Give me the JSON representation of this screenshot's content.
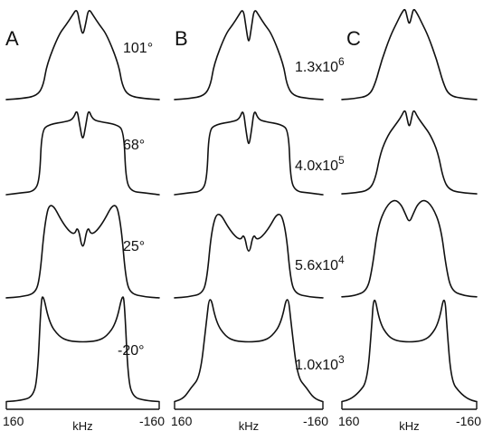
{
  "chart_data": {
    "type": "line",
    "x_unit": "kHz",
    "xlim": [
      160,
      -160
    ],
    "x_ticks": [
      "160",
      "-160"
    ],
    "panels": [
      {
        "label": "A",
        "row_labels": [
          "101°",
          "68°",
          "25°",
          "-20°"
        ],
        "tick_labels": [
          "160",
          "-160"
        ],
        "unit_label": "kHz",
        "spectra": [
          {
            "x": [
              160,
              130,
              95,
              82,
              75,
              50,
              35,
              22,
              12,
              6,
              0,
              -6,
              -12,
              -22,
              -35,
              -50,
              -75,
              -82,
              -95,
              -130,
              -160
            ],
            "y": [
              0.02,
              0.03,
              0.06,
              0.18,
              0.4,
              0.72,
              0.82,
              0.92,
              1.0,
              0.83,
              0.7,
              0.83,
              1.0,
              0.92,
              0.82,
              0.72,
              0.4,
              0.18,
              0.06,
              0.03,
              0.02
            ]
          },
          {
            "x": [
              160,
              130,
              100,
              90,
              86,
              70,
              35,
              20,
              12,
              6,
              0,
              -6,
              -12,
              -20,
              -35,
              -70,
              -86,
              -90,
              -100,
              -130,
              -160
            ],
            "y": [
              0.01,
              0.03,
              0.05,
              0.2,
              0.75,
              0.82,
              0.85,
              0.88,
              1.0,
              0.8,
              0.62,
              0.8,
              1.0,
              0.88,
              0.85,
              0.82,
              0.75,
              0.2,
              0.05,
              0.03,
              0.01
            ]
          },
          {
            "x": [
              160,
              130,
              100,
              90,
              80,
              68,
              40,
              18,
              10,
              0,
              -10,
              -18,
              -40,
              -68,
              -80,
              -90,
              -100,
              -130,
              -160
            ],
            "y": [
              0.01,
              0.02,
              0.05,
              0.2,
              0.75,
              1.0,
              0.74,
              0.63,
              0.74,
              0.46,
              0.74,
              0.63,
              0.74,
              1.0,
              0.75,
              0.2,
              0.05,
              0.02,
              0.01
            ]
          },
          {
            "x": [
              160,
              130,
              105,
              95,
              88,
              84,
              70,
              50,
              30,
              0,
              -30,
              -50,
              -70,
              -84,
              -88,
              -95,
              -105,
              -130,
              -160
            ],
            "y": [
              0.02,
              0.03,
              0.06,
              0.22,
              0.85,
              1.0,
              0.72,
              0.6,
              0.56,
              0.55,
              0.56,
              0.6,
              0.72,
              1.0,
              0.85,
              0.22,
              0.06,
              0.03,
              0.02
            ]
          }
        ]
      },
      {
        "label": "B",
        "row_labels": [
          "1.3x10^6",
          "4.0x10^5",
          "5.6x10^4",
          "1.0x10^3"
        ],
        "tick_labels": [
          "160",
          "-160"
        ],
        "unit_label": "kHz",
        "spectra": [
          {
            "x": [
              160,
              130,
              95,
              82,
              75,
              50,
              35,
              22,
              12,
              6,
              0,
              -6,
              -12,
              -22,
              -35,
              -50,
              -75,
              -82,
              -95,
              -130,
              -160
            ],
            "y": [
              0.02,
              0.03,
              0.06,
              0.18,
              0.4,
              0.72,
              0.82,
              0.92,
              1.0,
              0.8,
              0.6,
              0.8,
              1.0,
              0.92,
              0.82,
              0.72,
              0.4,
              0.18,
              0.06,
              0.03,
              0.02
            ]
          },
          {
            "x": [
              160,
              130,
              100,
              90,
              86,
              70,
              35,
              20,
              12,
              6,
              0,
              -6,
              -12,
              -20,
              -35,
              -70,
              -86,
              -90,
              -100,
              -130,
              -160
            ],
            "y": [
              0.01,
              0.03,
              0.05,
              0.2,
              0.75,
              0.82,
              0.85,
              0.88,
              1.0,
              0.75,
              0.55,
              0.75,
              1.0,
              0.88,
              0.85,
              0.82,
              0.75,
              0.2,
              0.05,
              0.03,
              0.01
            ]
          },
          {
            "x": [
              160,
              130,
              100,
              90,
              80,
              66,
              40,
              18,
              10,
              0,
              -10,
              -18,
              -40,
              -66,
              -80,
              -90,
              -100,
              -130,
              -160
            ],
            "y": [
              0.01,
              0.02,
              0.05,
              0.2,
              0.7,
              0.9,
              0.68,
              0.58,
              0.66,
              0.42,
              0.66,
              0.58,
              0.68,
              0.9,
              0.7,
              0.2,
              0.05,
              0.02,
              0.01
            ]
          },
          {
            "x": [
              160,
              140,
              125,
              105,
              92,
              84,
              70,
              50,
              30,
              0,
              -30,
              -50,
              -70,
              -84,
              -92,
              -105,
              -125,
              -140,
              -160
            ],
            "y": [
              0.02,
              0.05,
              0.14,
              0.24,
              0.7,
              1.0,
              0.72,
              0.6,
              0.56,
              0.55,
              0.56,
              0.6,
              0.72,
              1.0,
              0.7,
              0.24,
              0.14,
              0.05,
              0.02
            ]
          }
        ]
      },
      {
        "label": "C",
        "row_labels": [],
        "tick_labels": [
          "160",
          "-160"
        ],
        "unit_label": "kHz",
        "spectra": [
          {
            "x": [
              160,
              130,
              95,
              80,
              65,
              45,
              30,
              18,
              10,
              5,
              0,
              -5,
              -10,
              -18,
              -30,
              -45,
              -65,
              -80,
              -95,
              -130,
              -160
            ],
            "y": [
              0.02,
              0.03,
              0.06,
              0.2,
              0.45,
              0.7,
              0.84,
              0.95,
              1.0,
              0.9,
              0.82,
              0.9,
              1.0,
              0.95,
              0.84,
              0.7,
              0.45,
              0.2,
              0.06,
              0.03,
              0.02
            ]
          },
          {
            "x": [
              160,
              130,
              95,
              80,
              68,
              50,
              35,
              20,
              10,
              5,
              0,
              -5,
              -10,
              -20,
              -35,
              -50,
              -68,
              -80,
              -95,
              -130,
              -160
            ],
            "y": [
              0.02,
              0.03,
              0.06,
              0.2,
              0.5,
              0.7,
              0.8,
              0.9,
              1.0,
              0.88,
              0.78,
              0.88,
              1.0,
              0.9,
              0.8,
              0.7,
              0.5,
              0.2,
              0.06,
              0.03,
              0.02
            ]
          },
          {
            "x": [
              160,
              130,
              100,
              88,
              75,
              55,
              35,
              20,
              10,
              0,
              -10,
              -20,
              -35,
              -55,
              -75,
              -88,
              -100,
              -130,
              -160
            ],
            "y": [
              0.02,
              0.03,
              0.08,
              0.3,
              0.72,
              0.93,
              1.0,
              0.95,
              0.86,
              0.76,
              0.86,
              0.95,
              1.0,
              0.93,
              0.72,
              0.3,
              0.08,
              0.03,
              0.02
            ]
          },
          {
            "x": [
              160,
              140,
              120,
              100,
              90,
              84,
              70,
              50,
              30,
              0,
              -30,
              -50,
              -70,
              -84,
              -90,
              -100,
              -120,
              -140,
              -160
            ],
            "y": [
              0.02,
              0.04,
              0.1,
              0.2,
              0.65,
              1.0,
              0.72,
              0.6,
              0.56,
              0.55,
              0.56,
              0.6,
              0.72,
              1.0,
              0.65,
              0.2,
              0.1,
              0.04,
              0.02
            ]
          }
        ]
      }
    ]
  }
}
